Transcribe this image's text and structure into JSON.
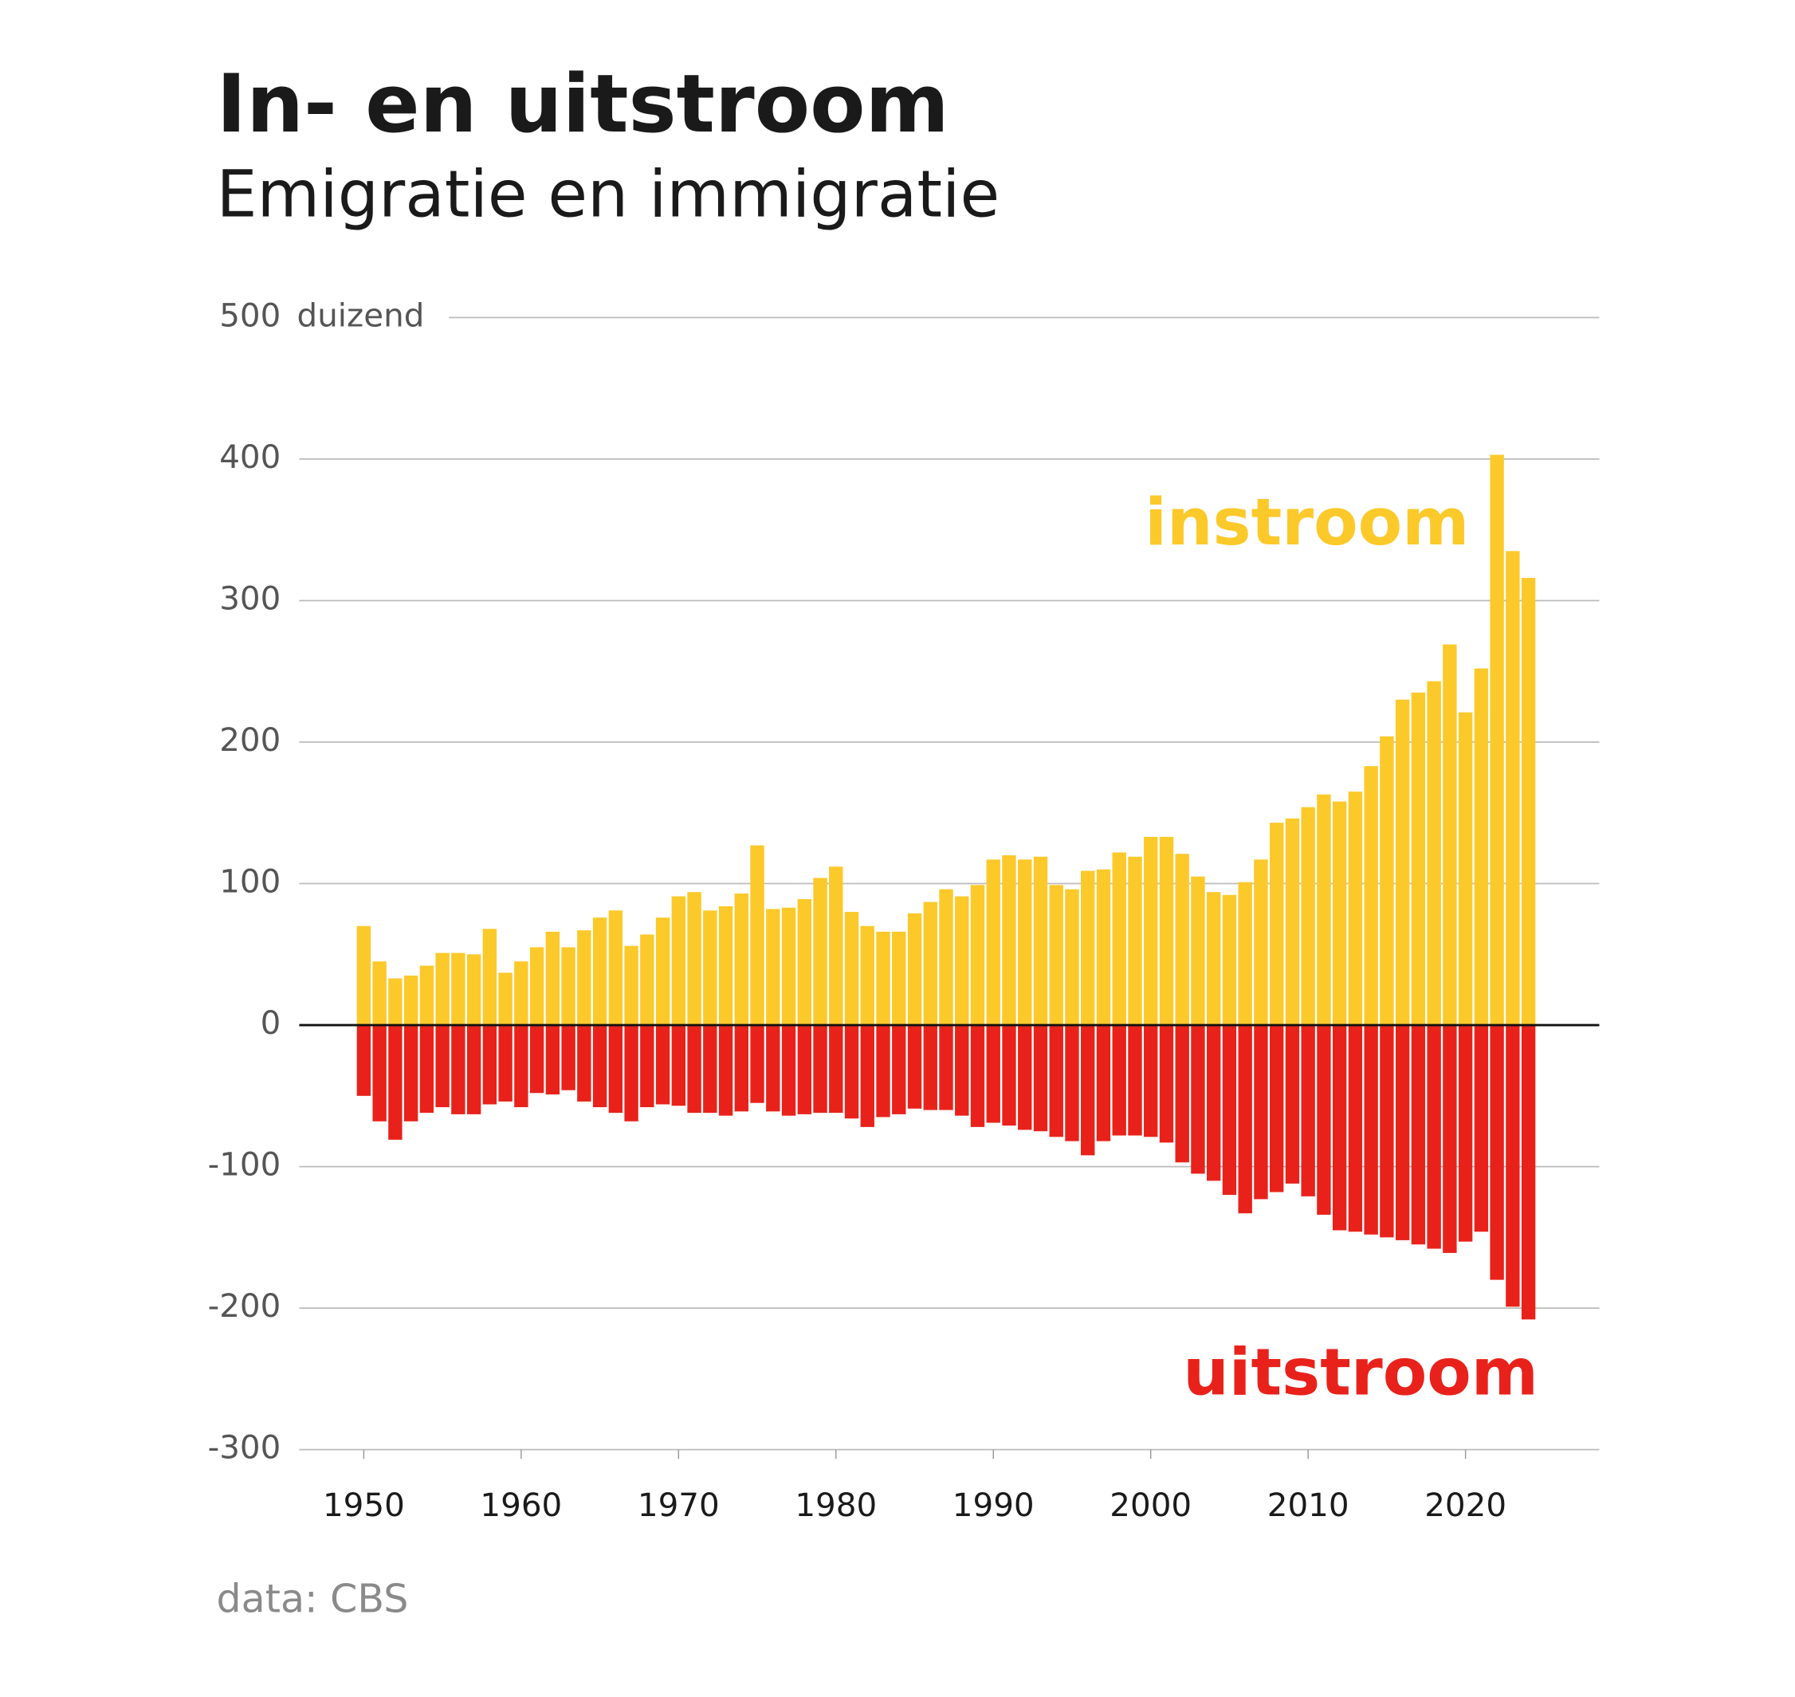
{
  "chart_data": {
    "type": "bar",
    "title": "In- en uitstroom",
    "subtitle": "Emigratie en immigratie",
    "y_unit": "duizend",
    "source": "data: CBS",
    "x": [
      1950,
      1951,
      1952,
      1953,
      1954,
      1955,
      1956,
      1957,
      1958,
      1959,
      1960,
      1961,
      1962,
      1963,
      1964,
      1965,
      1966,
      1967,
      1968,
      1969,
      1970,
      1971,
      1972,
      1973,
      1974,
      1975,
      1976,
      1977,
      1978,
      1979,
      1980,
      1981,
      1982,
      1983,
      1984,
      1985,
      1986,
      1987,
      1988,
      1989,
      1990,
      1991,
      1992,
      1993,
      1994,
      1995,
      1996,
      1997,
      1998,
      1999,
      2000,
      2001,
      2002,
      2003,
      2004,
      2005,
      2006,
      2007,
      2008,
      2009,
      2010,
      2011,
      2012,
      2013,
      2014,
      2015,
      2016,
      2017,
      2018,
      2019,
      2020,
      2021,
      2022,
      2023,
      2024
    ],
    "series": [
      {
        "name": "instroom",
        "color": "#fcc92a",
        "values": [
          70,
          45,
          33,
          35,
          42,
          51,
          51,
          50,
          68,
          37,
          45,
          55,
          66,
          55,
          67,
          76,
          81,
          56,
          64,
          76,
          91,
          94,
          81,
          84,
          93,
          127,
          82,
          83,
          89,
          104,
          112,
          80,
          70,
          66,
          66,
          79,
          87,
          96,
          91,
          99,
          117,
          120,
          117,
          119,
          99,
          96,
          109,
          110,
          122,
          119,
          133,
          133,
          121,
          105,
          94,
          92,
          101,
          117,
          143,
          146,
          154,
          163,
          158,
          165,
          183,
          204,
          230,
          235,
          243,
          269,
          221,
          252,
          403,
          335,
          316
        ]
      },
      {
        "name": "uitstroom",
        "color": "#e8221b",
        "values": [
          -50,
          -68,
          -81,
          -68,
          -62,
          -58,
          -63,
          -63,
          -56,
          -54,
          -58,
          -48,
          -49,
          -46,
          -54,
          -58,
          -62,
          -68,
          -58,
          -56,
          -57,
          -62,
          -62,
          -64,
          -61,
          -55,
          -61,
          -64,
          -63,
          -62,
          -62,
          -66,
          -72,
          -65,
          -63,
          -59,
          -60,
          -60,
          -64,
          -72,
          -69,
          -71,
          -74,
          -75,
          -79,
          -82,
          -92,
          -82,
          -78,
          -78,
          -79,
          -83,
          -97,
          -105,
          -110,
          -120,
          -133,
          -123,
          -118,
          -112,
          -121,
          -134,
          -145,
          -146,
          -148,
          -150,
          -152,
          -155,
          -158,
          -161,
          -153,
          -146,
          -180,
          -199,
          -208
        ]
      }
    ],
    "xlim": [
      1945.9,
      2028.5
    ],
    "xticks": [
      1950,
      1960,
      1970,
      1980,
      1990,
      2000,
      2010,
      2020
    ],
    "ylim": [
      -300,
      500
    ],
    "yticks": [
      -300,
      -200,
      -100,
      0,
      100,
      200,
      300,
      400,
      500
    ],
    "grid": true
  }
}
